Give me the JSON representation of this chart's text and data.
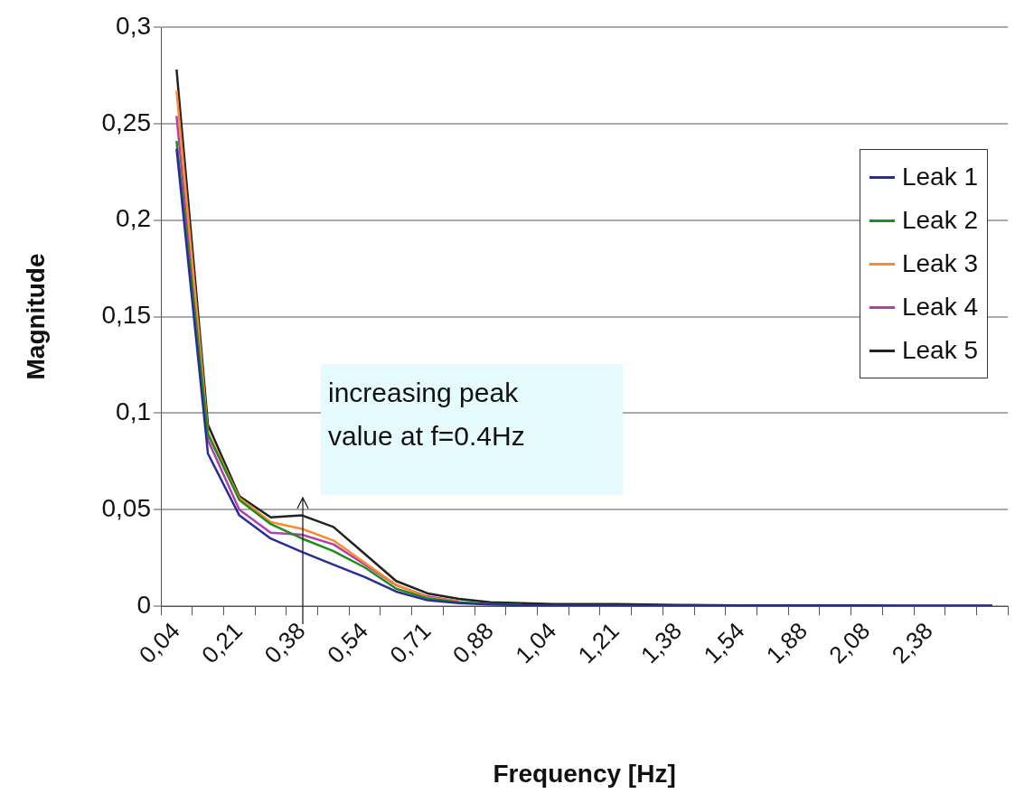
{
  "chart_data": {
    "type": "line",
    "xlabel": "Frequency [Hz]",
    "ylabel": "Magnitude",
    "categories": [
      "0,04",
      null,
      "0,21",
      null,
      "0,38",
      null,
      "0,54",
      null,
      "0,71",
      null,
      "0,88",
      null,
      "1,04",
      null,
      "1,21",
      null,
      "1,38",
      null,
      "1,54",
      null,
      "1,88",
      null,
      "2,08",
      null,
      "2,38",
      null,
      null
    ],
    "series": [
      {
        "name": "Leak 1",
        "color": "#2b2b9c",
        "values": [
          0.237,
          0.079,
          0.047,
          0.035,
          0.028,
          0.0215,
          0.015,
          0.0075,
          0.003,
          0.0015,
          0.0008,
          0.0005,
          0.0004,
          0.0003,
          0.0003,
          0.0002,
          0.0002,
          0.0002,
          0.0001,
          0.0001,
          0.0001,
          0.0001,
          0.0001,
          0.0001,
          0.0001,
          0.0001,
          0.0001
        ]
      },
      {
        "name": "Leak 2",
        "color": "#1e8c1e",
        "values": [
          0.241,
          0.089,
          0.055,
          0.0425,
          0.035,
          0.0285,
          0.02,
          0.009,
          0.004,
          0.002,
          0.001,
          0.0007,
          null,
          null,
          null,
          null,
          null,
          null,
          null,
          null,
          null,
          null,
          null,
          null,
          null,
          null,
          null
        ]
      },
      {
        "name": "Leak 3",
        "color": "#ff8a2a",
        "values": [
          0.267,
          0.09,
          0.056,
          0.0435,
          0.04,
          0.034,
          0.0225,
          0.011,
          0.0045,
          0.0025,
          null,
          null,
          null,
          null,
          null,
          null,
          null,
          null,
          null,
          null,
          null,
          null,
          null,
          null,
          null,
          null,
          null
        ]
      },
      {
        "name": "Leak 4",
        "color": "#b040b0",
        "values": [
          0.254,
          0.086,
          0.05,
          0.038,
          0.037,
          0.032,
          0.0215,
          0.0108,
          0.005,
          0.0025,
          null,
          null,
          null,
          null,
          null,
          null,
          null,
          null,
          null,
          null,
          null,
          null,
          null,
          null,
          null,
          null,
          null
        ]
      },
      {
        "name": "Leak 5",
        "color": "#222222",
        "values": [
          0.278,
          0.094,
          0.057,
          0.046,
          0.047,
          0.041,
          0.027,
          0.013,
          0.0066,
          0.0037,
          0.002,
          0.0015,
          0.001,
          0.001,
          0.001,
          0.0008,
          0.0006,
          0.0005,
          0.0004,
          0.0004,
          0.0003,
          0.0003,
          0.0003,
          0.0002,
          0.0002,
          0.0002,
          0.0002
        ]
      }
    ],
    "ylim": [
      0,
      0.3
    ],
    "yticks": [
      0,
      {
        "value": 0.05,
        "label": "0,05"
      },
      {
        "value": 0.1,
        "label": "0,1"
      },
      {
        "value": 0.15,
        "label": "0,15"
      },
      {
        "value": 0.2,
        "label": "0,2"
      },
      {
        "value": 0.25,
        "label": "0,25"
      },
      {
        "value": 0.3,
        "label": "0,3"
      }
    ],
    "grid": "y",
    "legend": "right",
    "marker": "none",
    "line_style": "solid",
    "annotations": [
      "increasing peak\nvalue at f=0.4Hz"
    ]
  }
}
